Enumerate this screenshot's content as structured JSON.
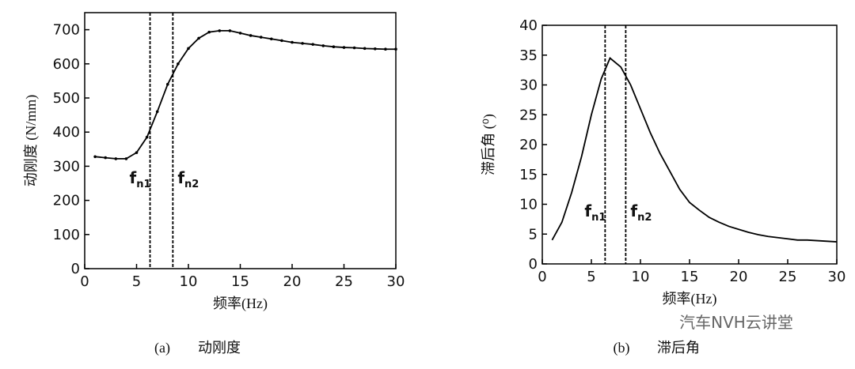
{
  "chart_data": [
    {
      "type": "line",
      "ylabel": "动刚度 (N/mm)",
      "xlabel": "频率(Hz)",
      "caption_tag": "(a)",
      "caption": "动刚度",
      "xlim": [
        0,
        30
      ],
      "xticks": [
        0,
        5,
        10,
        15,
        20,
        25,
        30
      ],
      "ylim": [
        0,
        750
      ],
      "yticks": [
        0,
        100,
        200,
        300,
        400,
        500,
        600,
        700
      ],
      "markers": true,
      "series": [
        {
          "color": "#000000",
          "x": [
            1,
            2,
            3,
            4,
            5,
            6,
            7,
            8,
            9,
            10,
            11,
            12,
            13,
            14,
            15,
            16,
            17,
            18,
            19,
            20,
            21,
            22,
            23,
            24,
            25,
            26,
            27,
            28,
            29,
            30
          ],
          "values": [
            328,
            325,
            322,
            322,
            340,
            385,
            460,
            540,
            600,
            645,
            675,
            693,
            697,
            697,
            690,
            683,
            678,
            673,
            668,
            663,
            660,
            657,
            653,
            650,
            648,
            647,
            645,
            644,
            643,
            643
          ]
        }
      ],
      "annotations": [
        {
          "label": "f",
          "sub": "n1",
          "x": 6.3
        },
        {
          "label": "f",
          "sub": "n2",
          "x": 8.5
        }
      ]
    },
    {
      "type": "line",
      "ylabel": "滞后角 (⁰)",
      "xlabel": "频率(Hz)",
      "caption_tag": "(b)",
      "caption": "滞后角",
      "xlim": [
        0,
        30
      ],
      "xticks": [
        0,
        5,
        10,
        15,
        20,
        25,
        30
      ],
      "ylim": [
        0,
        40
      ],
      "yticks": [
        0,
        5,
        10,
        15,
        20,
        25,
        30,
        35,
        40
      ],
      "markers": false,
      "series": [
        {
          "color": "#000000",
          "x": [
            1,
            2,
            3,
            4,
            5,
            6,
            6.9,
            8,
            9,
            10,
            11,
            12,
            13,
            14,
            15,
            16,
            17,
            18,
            19,
            20,
            21,
            22,
            23,
            24,
            25,
            26,
            27,
            28,
            29,
            30
          ],
          "values": [
            4,
            7,
            12,
            18,
            25,
            31,
            34.5,
            33,
            30,
            26,
            22,
            18.5,
            15.5,
            12.5,
            10.3,
            9,
            7.8,
            7,
            6.3,
            5.8,
            5.3,
            4.9,
            4.6,
            4.4,
            4.2,
            4,
            4,
            3.9,
            3.8,
            3.7
          ]
        }
      ],
      "annotations": [
        {
          "label": "f",
          "sub": "n1",
          "x": 6.4
        },
        {
          "label": "f",
          "sub": "n2",
          "x": 8.5
        }
      ]
    }
  ],
  "watermark": "汽车NVH云讲堂"
}
